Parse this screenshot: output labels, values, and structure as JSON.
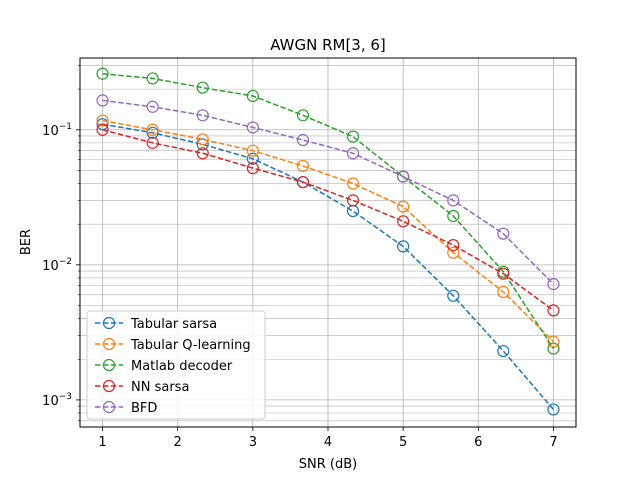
{
  "chart_data": {
    "type": "line",
    "title": "AWGN RM[3, 6]",
    "xlabel": "SNR (dB)",
    "ylabel": "BER",
    "xlim": [
      0.7,
      7.3
    ],
    "ylim": [
      0.00063,
      0.34
    ],
    "yscale": "log",
    "grid": true,
    "grid_minor": true,
    "legend_position": "lower-left",
    "x_ticks": [
      "1",
      "2",
      "3",
      "4",
      "5",
      "6",
      "7"
    ],
    "y_ticks": [
      {
        "base": "10",
        "exp": "−3",
        "value": 0.001
      },
      {
        "base": "10",
        "exp": "−2",
        "value": 0.01
      },
      {
        "base": "10",
        "exp": "−1",
        "value": 0.1
      }
    ],
    "x": [
      1,
      1.667,
      2.333,
      3,
      3.667,
      4.333,
      5,
      5.667,
      6.333,
      7
    ],
    "series": [
      {
        "name": "Tabular sarsa",
        "color": "#1f77b4",
        "values": [
          0.11,
          0.095,
          0.078,
          0.061,
          0.041,
          0.025,
          0.0137,
          0.0059,
          0.0023,
          0.00085
        ]
      },
      {
        "name": "Tabular Q-learning",
        "color": "#ff7f0e",
        "values": [
          0.117,
          0.1,
          0.085,
          0.07,
          0.054,
          0.04,
          0.027,
          0.0123,
          0.0063,
          0.0027
        ]
      },
      {
        "name": "Matlab decoder",
        "color": "#2ca02c",
        "values": [
          0.26,
          0.24,
          0.205,
          0.178,
          0.128,
          0.089,
          0.045,
          0.023,
          0.0089,
          0.0024
        ]
      },
      {
        "name": "NN sarsa",
        "color": "#d62728",
        "values": [
          0.1,
          0.08,
          0.067,
          0.052,
          0.041,
          0.03,
          0.021,
          0.014,
          0.0086,
          0.0046
        ]
      },
      {
        "name": "BFD",
        "color": "#9467bd",
        "values": [
          0.165,
          0.148,
          0.128,
          0.104,
          0.084,
          0.067,
          0.045,
          0.03,
          0.017,
          0.0072
        ]
      }
    ]
  }
}
